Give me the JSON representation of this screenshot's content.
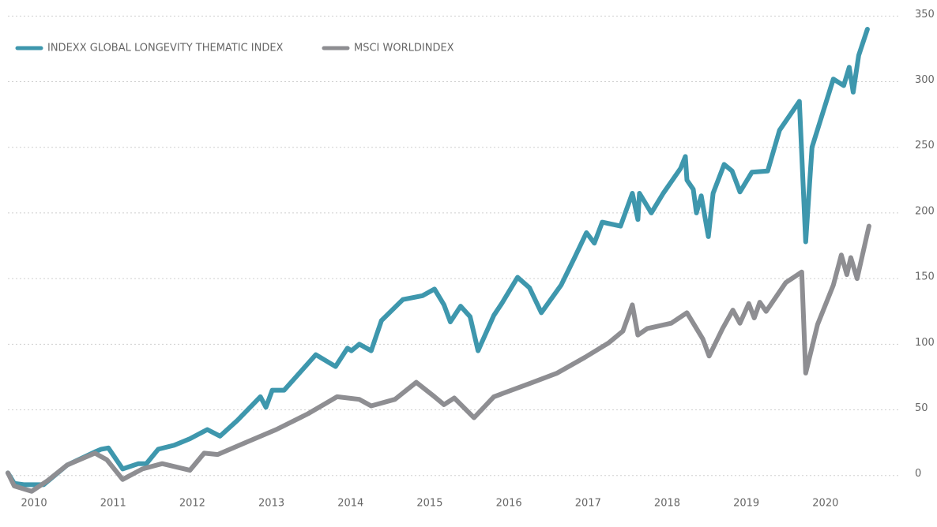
{
  "chart_data": {
    "type": "line",
    "xlim": [
      2009.67,
      2020.95
    ],
    "xticks": [
      2010,
      2011,
      2012,
      2013,
      2014,
      2015,
      2016,
      2017,
      2018,
      2019,
      2020
    ],
    "ylim": [
      -20,
      355
    ],
    "yticks": [
      0,
      50,
      100,
      150,
      200,
      250,
      300,
      350
    ],
    "grid": true,
    "legend": "top-left",
    "series": [
      {
        "name": "INDEXX GLOBAL LONGEVITY THEMATIC INDEX",
        "color": "#3e97ad",
        "x": [
          2009.67,
          2009.75,
          2009.87,
          2010.02,
          2010.12,
          2010.42,
          2010.77,
          2010.85,
          2010.94,
          2011.12,
          2011.32,
          2011.42,
          2011.57,
          2011.77,
          2011.97,
          2012.19,
          2012.35,
          2012.57,
          2012.86,
          2012.93,
          2013.01,
          2013.16,
          2013.56,
          2013.81,
          2013.96,
          2014.01,
          2014.11,
          2014.26,
          2014.39,
          2014.66,
          2014.91,
          2015.06,
          2015.18,
          2015.26,
          2015.39,
          2015.51,
          2015.61,
          2015.81,
          2015.91,
          2016.11,
          2016.26,
          2016.41,
          2016.66,
          2016.83,
          2016.98,
          2017.08,
          2017.18,
          2017.41,
          2017.56,
          2017.63,
          2017.65,
          2017.8,
          2017.95,
          2018.17,
          2018.23,
          2018.25,
          2018.33,
          2018.37,
          2018.43,
          2018.52,
          2018.58,
          2018.72,
          2018.82,
          2018.92,
          2019.07,
          2019.27,
          2019.42,
          2019.67,
          2019.75,
          2019.83,
          2020.1,
          2020.23,
          2020.3,
          2020.35,
          2020.42,
          2020.53
        ],
        "values": [
          2,
          -6,
          -7,
          -7,
          -7,
          8,
          18,
          20,
          21,
          5,
          9,
          9,
          20,
          23,
          28,
          35,
          30,
          42,
          60,
          52,
          65,
          65,
          92,
          83,
          97,
          95,
          100,
          95,
          118,
          134,
          137,
          142,
          130,
          117,
          129,
          121,
          95,
          122,
          131,
          151,
          143,
          124,
          145,
          166,
          185,
          177,
          193,
          190,
          215,
          195,
          215,
          200,
          215,
          234,
          243,
          225,
          218,
          200,
          213,
          182,
          215,
          237,
          232,
          216,
          231,
          232,
          263,
          285,
          178,
          250,
          302,
          297,
          311,
          292,
          320,
          340
        ]
      },
      {
        "name": "MSCI WORLDINDEX",
        "color": "#8e8e92",
        "x": [
          2009.67,
          2009.75,
          2009.97,
          2010.17,
          2010.42,
          2010.77,
          2010.92,
          2011.12,
          2011.37,
          2011.62,
          2011.97,
          2012.15,
          2012.32,
          2012.67,
          2013.06,
          2013.46,
          2013.83,
          2014.11,
          2014.26,
          2014.56,
          2014.83,
          2015.06,
          2015.18,
          2015.31,
          2015.56,
          2015.81,
          2016.26,
          2016.61,
          2016.96,
          2017.26,
          2017.44,
          2017.56,
          2017.63,
          2017.75,
          2018.05,
          2018.25,
          2018.45,
          2018.53,
          2018.7,
          2018.83,
          2018.92,
          2019.03,
          2019.1,
          2019.17,
          2019.25,
          2019.5,
          2019.7,
          2019.75,
          2019.9,
          2020.1,
          2020.2,
          2020.27,
          2020.32,
          2020.4,
          2020.55
        ],
        "values": [
          2,
          -8,
          -12,
          -4,
          8,
          17,
          12,
          -3,
          5,
          9,
          4,
          17,
          16,
          25,
          35,
          47,
          60,
          58,
          53,
          58,
          71,
          60,
          54,
          59,
          44,
          60,
          70,
          78,
          90,
          101,
          110,
          130,
          107,
          112,
          116,
          124,
          104,
          91,
          112,
          126,
          116,
          131,
          120,
          132,
          125,
          147,
          155,
          78,
          115,
          145,
          168,
          153,
          166,
          150,
          190
        ]
      }
    ]
  }
}
